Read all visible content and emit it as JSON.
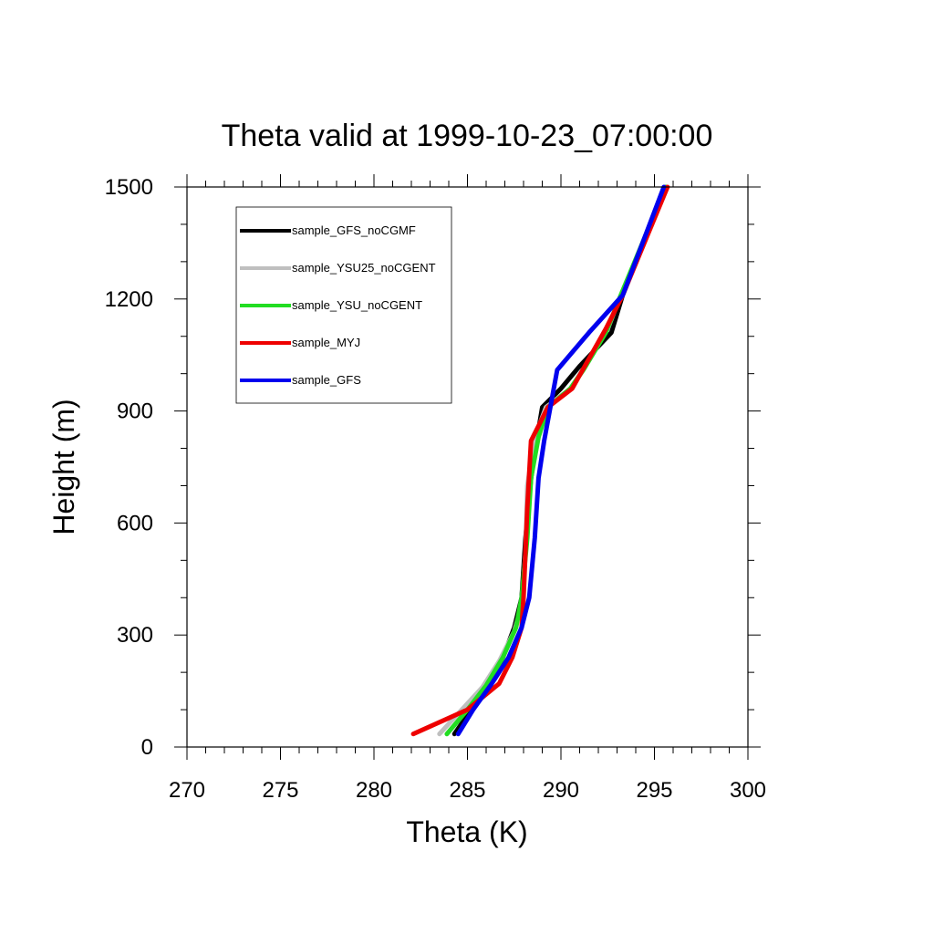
{
  "chart_data": {
    "type": "line",
    "title": "Theta valid at 1999-10-23_07:00:00",
    "xlabel": "Theta (K)",
    "ylabel": "Height (m)",
    "xlim": [
      270,
      300
    ],
    "ylim": [
      0,
      1500
    ],
    "xticks": [
      "270",
      "275",
      "280",
      "285",
      "290",
      "295",
      "300"
    ],
    "yticks": [
      "0",
      "300",
      "600",
      "900",
      "1200",
      "1500"
    ],
    "grid": false,
    "legend_position": "top-left",
    "series": [
      {
        "name": "sample_GFS_noCGMF",
        "color": "#000000",
        "x": [
          284.3,
          285.2,
          286.2,
          286.9,
          287.5,
          287.9,
          288.1,
          288.4,
          288.7,
          289.0,
          290.0,
          291.0,
          292.7,
          293.3,
          295.6
        ],
        "y": [
          35,
          100,
          170,
          240,
          320,
          400,
          560,
          720,
          820,
          910,
          960,
          1020,
          1110,
          1210,
          1500
        ]
      },
      {
        "name": "sample_YSU25_noCGENT",
        "color": "#bfbfbf",
        "x": [
          283.5,
          284.7,
          285.8,
          286.7,
          287.5,
          287.9,
          288.1,
          288.2,
          288.6,
          289.2,
          290.5,
          291.3,
          292.5,
          293.2,
          295.7
        ],
        "y": [
          35,
          100,
          160,
          230,
          310,
          380,
          520,
          700,
          830,
          910,
          960,
          1020,
          1120,
          1210,
          1500
        ]
      },
      {
        "name": "sample_YSU_noCGENT",
        "color": "#22dd22",
        "x": [
          283.9,
          285.0,
          286.0,
          286.9,
          287.6,
          287.9,
          288.2,
          288.4,
          288.8,
          289.3,
          290.5,
          291.2,
          292.4,
          293.2,
          295.6
        ],
        "y": [
          35,
          100,
          165,
          240,
          320,
          400,
          560,
          720,
          830,
          910,
          960,
          1010,
          1110,
          1210,
          1500
        ]
      },
      {
        "name": "sample_MYJ",
        "color": "#ee0000",
        "x": [
          282.1,
          285.0,
          286.7,
          287.4,
          287.9,
          288.0,
          288.2,
          288.4,
          289.3,
          290.6,
          292.4,
          293.3,
          295.7
        ],
        "y": [
          35,
          100,
          170,
          240,
          320,
          400,
          640,
          820,
          910,
          960,
          1120,
          1210,
          1500
        ]
      },
      {
        "name": "sample_GFS",
        "color": "#0000ee",
        "x": [
          284.5,
          285.3,
          286.3,
          287.2,
          287.9,
          288.3,
          288.6,
          288.8,
          289.1,
          289.8,
          291.5,
          293.3,
          295.5
        ],
        "y": [
          35,
          100,
          170,
          240,
          320,
          400,
          560,
          720,
          820,
          1010,
          1110,
          1210,
          1500
        ]
      }
    ]
  }
}
